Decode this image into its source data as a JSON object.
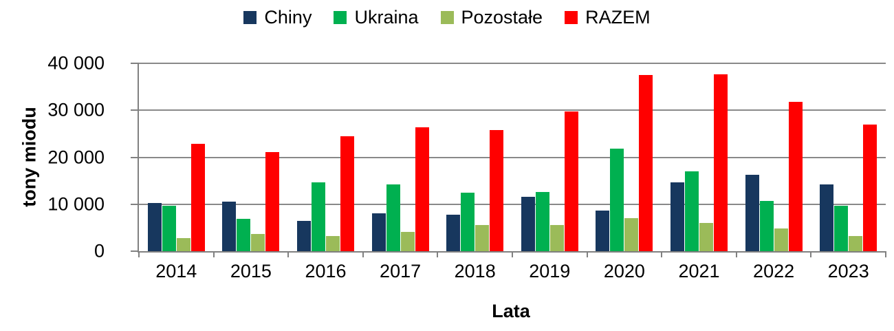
{
  "colors": {
    "axis": "#808080",
    "grid": "#898989",
    "text": "#000000",
    "background": "#FFFFFF"
  },
  "chart_data": {
    "type": "bar",
    "title": "",
    "xlabel": "Lata",
    "ylabel": "tony miodu",
    "categories": [
      "2014",
      "2015",
      "2016",
      "2017",
      "2018",
      "2019",
      "2020",
      "2021",
      "2022",
      "2023"
    ],
    "series": [
      {
        "name": "Chiny",
        "color": "#17375E",
        "values": [
          10300,
          10600,
          6500,
          8100,
          7800,
          11600,
          8700,
          14600,
          16300,
          14200
        ]
      },
      {
        "name": "Ukraina",
        "color": "#00B050",
        "values": [
          9700,
          6900,
          14700,
          14200,
          12400,
          12600,
          21800,
          17000,
          10700,
          9700
        ]
      },
      {
        "name": "Pozostałe",
        "color": "#9BBB59",
        "values": [
          2800,
          3600,
          3200,
          4100,
          5600,
          5500,
          7000,
          6000,
          4800,
          3200
        ]
      },
      {
        "name": "RAZEM",
        "color": "#FF0000",
        "values": [
          22800,
          21100,
          24400,
          26400,
          25800,
          29700,
          37500,
          37600,
          31800,
          27000
        ]
      }
    ],
    "ylim": [
      0,
      40000
    ],
    "ytick_step": 10000,
    "ytick_labels": [
      "0",
      "10 000",
      "20 000",
      "30 000",
      "40 000"
    ],
    "grid": true,
    "legend_position": "top-center"
  }
}
